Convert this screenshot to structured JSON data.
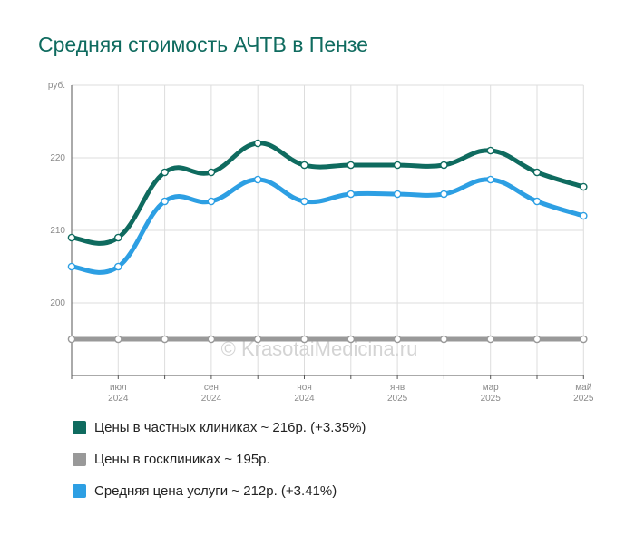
{
  "title": "Средняя стоимость АЧТВ в Пензе",
  "watermark": "© KrasotaiMedicina.ru",
  "legend": [
    {
      "label": "Цены в частных клиниках ~ 216р. (+3.35%)",
      "color": "#0f6b5f"
    },
    {
      "label": "Цены в госклиниках ~ 195р.",
      "color": "#999999"
    },
    {
      "label": "Средняя цена услуги ~ 212р. (+3.41%)",
      "color": "#2d9fe3"
    }
  ],
  "chart_data": {
    "type": "line",
    "ylabel": "руб.",
    "ylim": [
      190,
      230
    ],
    "yticks": [
      200,
      210,
      220
    ],
    "x_tick_labels": [
      {
        "index": 1,
        "month": "июл",
        "year": "2024"
      },
      {
        "index": 3,
        "month": "сен",
        "year": "2024"
      },
      {
        "index": 5,
        "month": "ноя",
        "year": "2024"
      },
      {
        "index": 7,
        "month": "янв",
        "year": "2025"
      },
      {
        "index": 9,
        "month": "мар",
        "year": "2025"
      },
      {
        "index": 11,
        "month": "май",
        "year": "2025"
      }
    ],
    "series": [
      {
        "name": "Цены в частных клиниках ~ 216р. (+3.35%)",
        "color": "#0f6b5f",
        "values": [
          209,
          209,
          218,
          218,
          222,
          219,
          219,
          219,
          219,
          221,
          218,
          216
        ]
      },
      {
        "name": "Средняя цена услуги ~ 212р. (+3.41%)",
        "color": "#2d9fe3",
        "values": [
          205,
          205,
          214,
          214,
          217,
          214,
          215,
          215,
          215,
          217,
          214,
          212
        ]
      },
      {
        "name": "Цены в госклиниках ~ 195р.",
        "color": "#999999",
        "values": [
          195,
          195,
          195,
          195,
          195,
          195,
          195,
          195,
          195,
          195,
          195,
          195
        ]
      }
    ],
    "grid": true
  }
}
